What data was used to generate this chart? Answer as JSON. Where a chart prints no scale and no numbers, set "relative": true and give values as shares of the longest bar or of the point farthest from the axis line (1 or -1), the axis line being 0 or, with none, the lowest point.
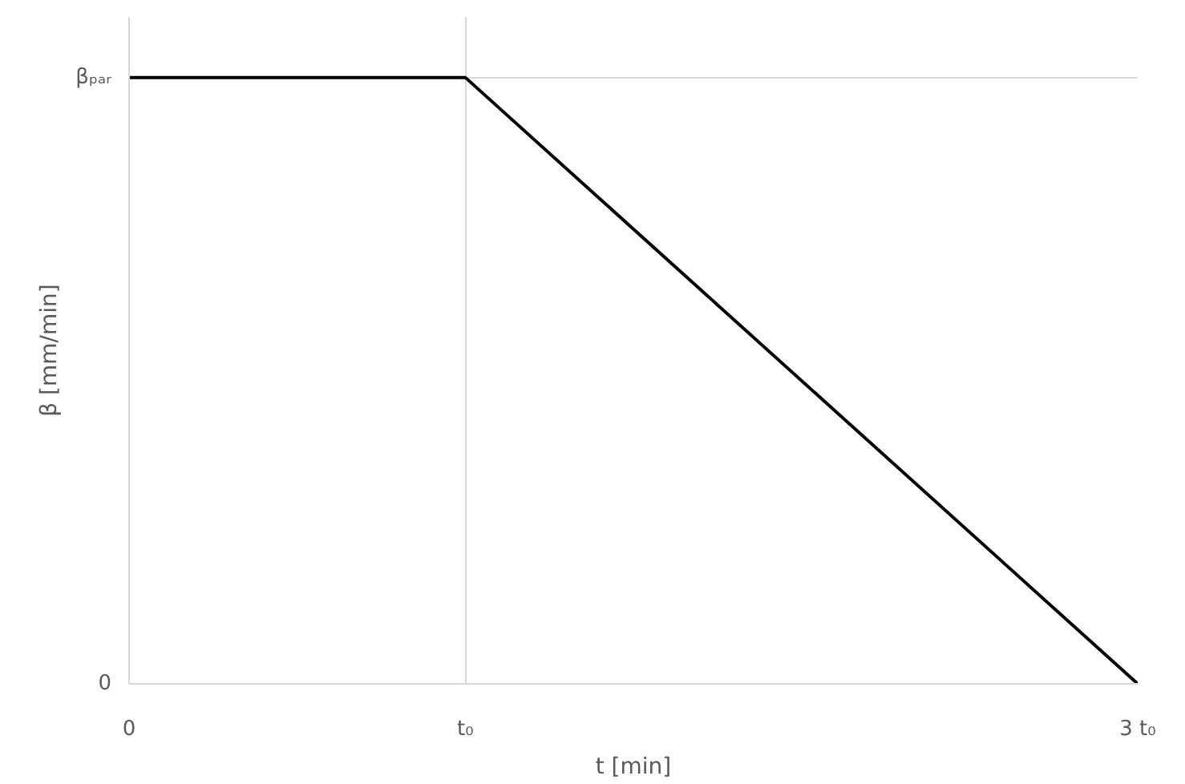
{
  "chart_data": {
    "type": "line",
    "xlabel": "t [min]",
    "ylabel": "β [mm/min]",
    "x": [
      0,
      1,
      3
    ],
    "series": [
      {
        "color": "#000000",
        "values": [
          1,
          1,
          0
        ]
      }
    ],
    "relative": true,
    "xlim": [
      0,
      3
    ],
    "xticks": [
      0,
      {
        "value": 1,
        "label": "t₀"
      },
      {
        "value": 3,
        "label": "3 t₀"
      }
    ],
    "annotations": [
      "0",
      "βₚₐᵣ"
    ],
    "grid": true,
    "marker": "none",
    "line_style": "solid"
  }
}
